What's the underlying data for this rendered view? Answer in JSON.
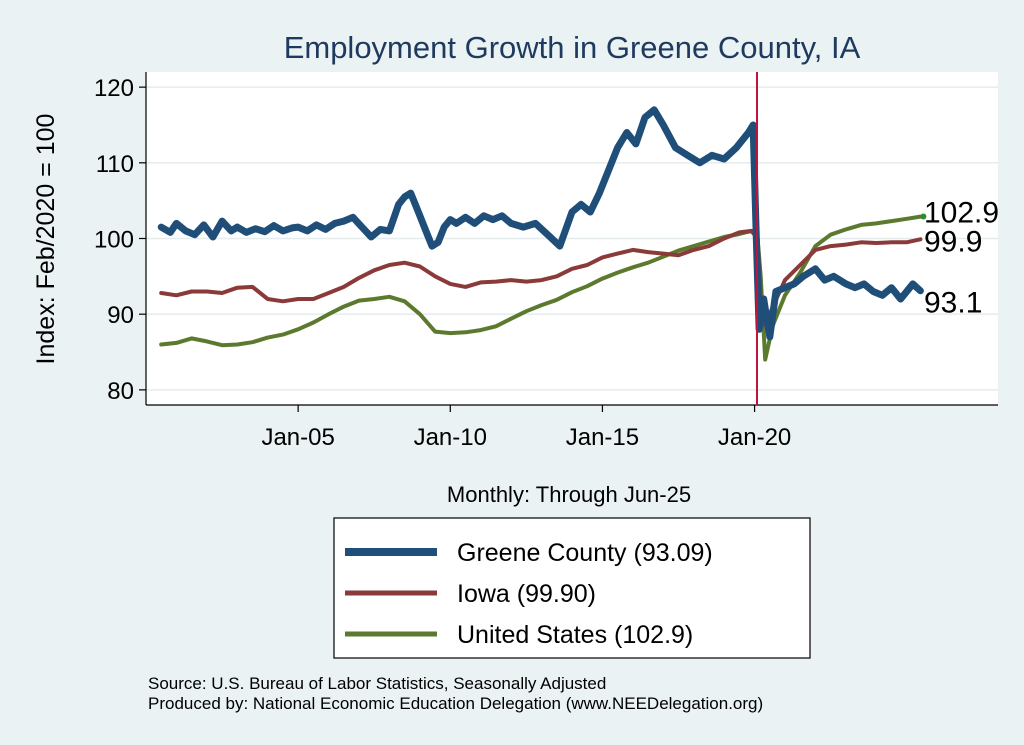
{
  "chart_data": {
    "type": "line",
    "title": "Employment Growth in Greene  County, IA",
    "ylabel": "Index: Feb/2020 = 100",
    "xlabel": "Monthly: Through Jun-25",
    "ylim": [
      78,
      122
    ],
    "xlim": [
      2000.0,
      2028.0
    ],
    "yticks": [
      80,
      90,
      100,
      110,
      120
    ],
    "xticks": [
      {
        "value": 2005.0,
        "label": "Jan-05"
      },
      {
        "value": 2010.0,
        "label": "Jan-10"
      },
      {
        "value": 2015.0,
        "label": "Jan-15"
      },
      {
        "value": 2020.0,
        "label": "Jan-20"
      }
    ],
    "reference_line": {
      "x": 2020.08,
      "color": "#C0143C"
    },
    "end_labels": [
      {
        "text": "102.9",
        "value": 102.9
      },
      {
        "text": "99.9",
        "value": 99.9
      },
      {
        "text": "93.1",
        "value": 93.1
      }
    ],
    "legend": [
      {
        "label": "Greene  County (93.09)",
        "color": "#1F4E79",
        "width": 7
      },
      {
        "label": "Iowa (99.90)",
        "color": "#8B3A3A",
        "width": 4
      },
      {
        "label": "United States (102.9)",
        "color": "#5C7A2E",
        "width": 4
      }
    ],
    "series": [
      {
        "name": "Greene  County",
        "color": "#1F4E79",
        "width": 7,
        "x": [
          2000.5,
          2000.8,
          2001.0,
          2001.3,
          2001.6,
          2001.9,
          2002.2,
          2002.5,
          2002.8,
          2003.0,
          2003.3,
          2003.6,
          2003.9,
          2004.2,
          2004.5,
          2004.8,
          2005.0,
          2005.3,
          2005.6,
          2005.9,
          2006.2,
          2006.5,
          2006.8,
          2007.1,
          2007.4,
          2007.7,
          2008.0,
          2008.3,
          2008.5,
          2008.7,
          2009.0,
          2009.2,
          2009.4,
          2009.6,
          2009.8,
          2010.0,
          2010.2,
          2010.5,
          2010.8,
          2011.1,
          2011.4,
          2011.7,
          2012.0,
          2012.4,
          2012.8,
          2013.2,
          2013.6,
          2014.0,
          2014.3,
          2014.6,
          2014.9,
          2015.2,
          2015.5,
          2015.8,
          2016.1,
          2016.4,
          2016.7,
          2017.0,
          2017.4,
          2017.8,
          2018.2,
          2018.6,
          2019.0,
          2019.4,
          2019.8,
          2019.95,
          2020.05,
          2020.15,
          2020.3,
          2020.5,
          2020.7,
          2021.0,
          2021.3,
          2021.6,
          2022.0,
          2022.3,
          2022.6,
          2023.0,
          2023.3,
          2023.6,
          2023.9,
          2024.2,
          2024.5,
          2024.8,
          2025.0,
          2025.2,
          2025.45
        ],
        "values": [
          101.5,
          100.8,
          102.0,
          101.0,
          100.5,
          101.8,
          100.2,
          102.3,
          101.0,
          101.5,
          100.8,
          101.3,
          100.9,
          101.7,
          101.0,
          101.4,
          101.5,
          101.0,
          101.8,
          101.2,
          102.0,
          102.3,
          102.8,
          101.5,
          100.2,
          101.2,
          101.0,
          104.5,
          105.5,
          106.0,
          103.0,
          101.0,
          99.0,
          99.5,
          101.5,
          102.5,
          102.0,
          102.8,
          102.0,
          103.0,
          102.5,
          103.0,
          102.0,
          101.5,
          102.0,
          100.5,
          99.0,
          103.5,
          104.5,
          103.5,
          106.0,
          109.0,
          112.0,
          114.0,
          112.5,
          116.0,
          117.0,
          115.0,
          112.0,
          111.0,
          110.0,
          111.0,
          110.5,
          112.0,
          114.0,
          115.0,
          101.0,
          88.0,
          92.0,
          87.0,
          93.0,
          93.5,
          94.0,
          95.0,
          96.0,
          94.5,
          95.0,
          94.0,
          93.5,
          94.0,
          93.0,
          92.5,
          93.5,
          92.0,
          93.0,
          94.0,
          93.09
        ]
      },
      {
        "name": "Iowa",
        "color": "#8B3A3A",
        "width": 4,
        "x": [
          2000.5,
          2001.0,
          2001.5,
          2002.0,
          2002.5,
          2003.0,
          2003.5,
          2004.0,
          2004.5,
          2005.0,
          2005.5,
          2006.0,
          2006.5,
          2007.0,
          2007.5,
          2008.0,
          2008.5,
          2009.0,
          2009.5,
          2010.0,
          2010.5,
          2011.0,
          2011.5,
          2012.0,
          2012.5,
          2013.0,
          2013.5,
          2014.0,
          2014.5,
          2015.0,
          2015.5,
          2016.0,
          2016.5,
          2017.0,
          2017.5,
          2018.0,
          2018.5,
          2019.0,
          2019.5,
          2019.9,
          2020.1,
          2020.2,
          2020.35,
          2020.6,
          2021.0,
          2021.5,
          2022.0,
          2022.5,
          2023.0,
          2023.5,
          2024.0,
          2024.5,
          2025.0,
          2025.45
        ],
        "values": [
          92.8,
          92.5,
          93.0,
          93.0,
          92.8,
          93.5,
          93.6,
          92.0,
          91.7,
          92.0,
          92.0,
          92.8,
          93.6,
          94.8,
          95.8,
          96.5,
          96.8,
          96.3,
          95.0,
          94.0,
          93.6,
          94.2,
          94.3,
          94.5,
          94.3,
          94.5,
          95.0,
          96.0,
          96.5,
          97.5,
          98.0,
          98.5,
          98.2,
          98.0,
          97.8,
          98.5,
          99.0,
          100.0,
          100.8,
          101.0,
          100.0,
          92.0,
          88.5,
          91.0,
          94.5,
          96.5,
          98.5,
          99.0,
          99.2,
          99.5,
          99.4,
          99.5,
          99.5,
          99.9
        ]
      },
      {
        "name": "United States",
        "color": "#5C7A2E",
        "width": 4,
        "x": [
          2000.5,
          2001.0,
          2001.5,
          2002.0,
          2002.5,
          2003.0,
          2003.5,
          2004.0,
          2004.5,
          2005.0,
          2005.5,
          2006.0,
          2006.5,
          2007.0,
          2007.5,
          2008.0,
          2008.5,
          2009.0,
          2009.5,
          2010.0,
          2010.5,
          2011.0,
          2011.5,
          2012.0,
          2012.5,
          2013.0,
          2013.5,
          2014.0,
          2014.5,
          2015.0,
          2015.5,
          2016.0,
          2016.5,
          2017.0,
          2017.5,
          2018.0,
          2018.5,
          2019.0,
          2019.5,
          2019.9,
          2020.1,
          2020.2,
          2020.35,
          2020.6,
          2021.0,
          2021.5,
          2022.0,
          2022.5,
          2023.0,
          2023.5,
          2024.0,
          2024.5,
          2025.0,
          2025.45
        ],
        "values": [
          86.0,
          86.2,
          86.8,
          86.4,
          85.9,
          86.0,
          86.3,
          86.9,
          87.3,
          88.0,
          88.9,
          90.0,
          91.0,
          91.8,
          92.0,
          92.3,
          91.7,
          90.0,
          87.7,
          87.5,
          87.6,
          87.9,
          88.4,
          89.4,
          90.4,
          91.2,
          91.9,
          92.9,
          93.7,
          94.7,
          95.5,
          96.2,
          96.8,
          97.6,
          98.4,
          99.0,
          99.6,
          100.2,
          100.6,
          101.0,
          100.0,
          95.0,
          84.0,
          88.5,
          92.5,
          95.5,
          99.0,
          100.5,
          101.2,
          101.8,
          102.0,
          102.3,
          102.6,
          102.9
        ]
      }
    ]
  },
  "source": {
    "line1": "Source: U.S. Bureau of Labor Statistics, Seasonally Adjusted",
    "line2": "Produced by: National Economic Education Delegation (www.NEEDelegation.org)"
  }
}
